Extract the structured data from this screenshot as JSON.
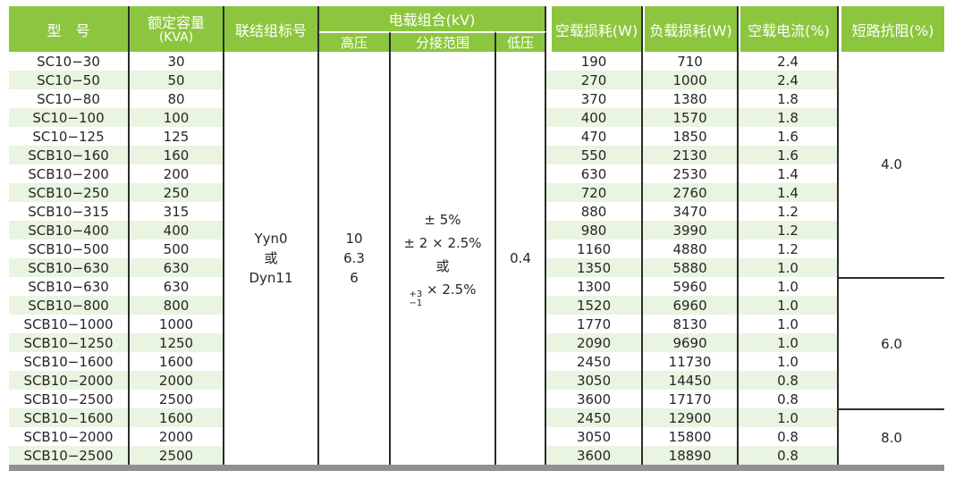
{
  "table": {
    "headers": {
      "model": "型　号",
      "capacity": "额定容量",
      "capacity_unit": "(KVA)",
      "connection": "联结组标号",
      "voltage_group": "电载组合(kV)",
      "hv": "高压",
      "tap_range": "分接范围",
      "lv": "低压",
      "no_load_loss": "空载损耗(W)",
      "load_loss": "负载损耗(W)",
      "no_load_current": "空载电流(%)",
      "impedance": "短路抗阻(%)"
    },
    "merged": {
      "connection_lines": [
        "Yyn0",
        "或",
        "Dyn11"
      ],
      "hv_lines": [
        "10",
        "6.3",
        "6"
      ],
      "tap_lines": [
        "± 5%",
        "± 2 × 2.5%",
        "或"
      ],
      "tap_stacked": {
        "top": "+3",
        "bottom": "−1",
        "suffix": " × 2.5%"
      },
      "lv": "0.4"
    },
    "impedance_groups": [
      {
        "value": "4.0",
        "rows": 12
      },
      {
        "value": "6.0",
        "rows": 7
      },
      {
        "value": "8.0",
        "rows": 3
      }
    ],
    "rows": [
      {
        "model": "SC10−30",
        "capacity": "30",
        "no_load_loss": "190",
        "load_loss": "710",
        "no_load_current": "2.4"
      },
      {
        "model": "SC10−50",
        "capacity": "50",
        "no_load_loss": "270",
        "load_loss": "1000",
        "no_load_current": "2.4"
      },
      {
        "model": "SC10−80",
        "capacity": "80",
        "no_load_loss": "370",
        "load_loss": "1380",
        "no_load_current": "1.8"
      },
      {
        "model": "SC10−100",
        "capacity": "100",
        "no_load_loss": "400",
        "load_loss": "1570",
        "no_load_current": "1.8"
      },
      {
        "model": "SC10−125",
        "capacity": "125",
        "no_load_loss": "470",
        "load_loss": "1850",
        "no_load_current": "1.6"
      },
      {
        "model": "SCB10−160",
        "capacity": "160",
        "no_load_loss": "550",
        "load_loss": "2130",
        "no_load_current": "1.6"
      },
      {
        "model": "SCB10−200",
        "capacity": "200",
        "no_load_loss": "630",
        "load_loss": "2530",
        "no_load_current": "1.4"
      },
      {
        "model": "SCB10−250",
        "capacity": "250",
        "no_load_loss": "720",
        "load_loss": "2760",
        "no_load_current": "1.4"
      },
      {
        "model": "SCB10−315",
        "capacity": "315",
        "no_load_loss": "880",
        "load_loss": "3470",
        "no_load_current": "1.2"
      },
      {
        "model": "SCB10−400",
        "capacity": "400",
        "no_load_loss": "980",
        "load_loss": "3990",
        "no_load_current": "1.2"
      },
      {
        "model": "SCB10−500",
        "capacity": "500",
        "no_load_loss": "1160",
        "load_loss": "4880",
        "no_load_current": "1.2"
      },
      {
        "model": "SCB10−630",
        "capacity": "630",
        "no_load_loss": "1350",
        "load_loss": "5880",
        "no_load_current": "1.0"
      },
      {
        "model": "SCB10−630",
        "capacity": "630",
        "no_load_loss": "1300",
        "load_loss": "5960",
        "no_load_current": "1.0"
      },
      {
        "model": "SCB10−800",
        "capacity": "800",
        "no_load_loss": "1520",
        "load_loss": "6960",
        "no_load_current": "1.0"
      },
      {
        "model": "SCB10−1000",
        "capacity": "1000",
        "no_load_loss": "1770",
        "load_loss": "8130",
        "no_load_current": "1.0"
      },
      {
        "model": "SCB10−1250",
        "capacity": "1250",
        "no_load_loss": "2090",
        "load_loss": "9690",
        "no_load_current": "1.0"
      },
      {
        "model": "SCB10−1600",
        "capacity": "1600",
        "no_load_loss": "2450",
        "load_loss": "11730",
        "no_load_current": "1.0"
      },
      {
        "model": "SCB10−2000",
        "capacity": "2000",
        "no_load_loss": "3050",
        "load_loss": "14450",
        "no_load_current": "0.8"
      },
      {
        "model": "SCB10−2500",
        "capacity": "2500",
        "no_load_loss": "3600",
        "load_loss": "17170",
        "no_load_current": "0.8"
      },
      {
        "model": "SCB10−1600",
        "capacity": "1600",
        "no_load_loss": "2450",
        "load_loss": "12900",
        "no_load_current": "1.0"
      },
      {
        "model": "SCB10−2000",
        "capacity": "2000",
        "no_load_loss": "3050",
        "load_loss": "15800",
        "no_load_current": "0.8"
      },
      {
        "model": "SCB10−2500",
        "capacity": "2500",
        "no_load_loss": "3600",
        "load_loss": "18890",
        "no_load_current": "0.8"
      }
    ]
  },
  "colors": {
    "header_green": "#8CC63E",
    "stripe_green": "#E9F4E1",
    "grid_line": "#2b2b2b",
    "bottom_bar": "#8f9190",
    "header_text": "#ffffff",
    "body_text": "#262626"
  }
}
